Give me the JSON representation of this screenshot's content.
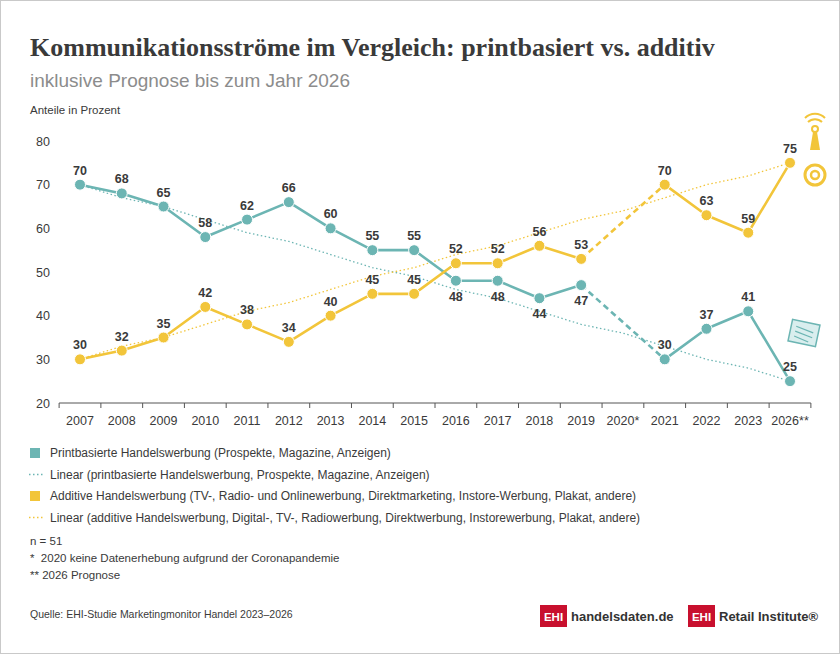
{
  "chart_data": {
    "type": "line",
    "title": "Kommunikationsströme im Vergleich: printbasiert vs. additiv",
    "subtitle": "inklusive Prognose bis zum Jahr 2026",
    "ylabel": "Anteile in Prozent",
    "categories": [
      "2007",
      "2008",
      "2009",
      "2010",
      "2011",
      "2012",
      "2013",
      "2014",
      "2015",
      "2016",
      "2017",
      "2018",
      "2019",
      "2020*",
      "2021",
      "2022",
      "2023",
      "2026**"
    ],
    "series": [
      {
        "name": "Printbasierte Handelswerbung (Prospekte, Magazine, Anzeigen)",
        "color": "#6cb5b3",
        "marker": "circle",
        "line_style": "solid",
        "values": [
          70,
          68,
          65,
          58,
          62,
          66,
          60,
          55,
          55,
          48,
          48,
          44,
          47,
          null,
          30,
          37,
          41,
          25
        ]
      },
      {
        "name": "Linear (printbasierte Handelswerbung, Prospekte, Magazine, Anzeigen)",
        "color": "#6cb5b3",
        "marker": "none",
        "line_style": "dotted",
        "data_labels": false,
        "values": [
          70,
          67,
          65,
          62,
          59,
          57,
          54,
          51,
          49,
          46,
          44,
          41,
          38,
          36,
          33,
          30,
          28,
          25
        ]
      },
      {
        "name": "Additive Handelswerbung (TV-, Radio- und Onlinewerbung, Direktmarketing, Instore-Werbung, Plakat, andere)",
        "color": "#f2c53a",
        "marker": "circle",
        "line_style": "solid",
        "values": [
          30,
          32,
          35,
          42,
          38,
          34,
          40,
          45,
          45,
          52,
          52,
          56,
          53,
          null,
          70,
          63,
          59,
          75
        ]
      },
      {
        "name": "Linear (additive Handelswerbung, Digital-, TV-, Radiowerbung, Direktwerbung, Instorewerbung, Plakat, andere)",
        "color": "#f2c53a",
        "marker": "none",
        "line_style": "dotted",
        "data_labels": false,
        "values": [
          30,
          33,
          35,
          38,
          41,
          43,
          46,
          49,
          51,
          54,
          56,
          59,
          62,
          64,
          67,
          70,
          72,
          75
        ]
      }
    ],
    "ylim": [
      20,
      80
    ],
    "yticks": [
      20,
      30,
      40,
      50,
      60,
      70,
      80
    ],
    "grid": false,
    "legend": "bottom-left",
    "data_labels": true,
    "annotations": [
      "n = 51",
      "*  2020 keine Datenerhebung aufgrund der Coronapandemie",
      "** 2026 Prognose"
    ],
    "source": "Quelle: EHI-Studie Marketingmonitor Handel 2023–2026",
    "logos": [
      {
        "badge": "EHI",
        "text": "handelsdaten.de"
      },
      {
        "badge": "EHI",
        "text": "Retail Institute®"
      }
    ]
  }
}
